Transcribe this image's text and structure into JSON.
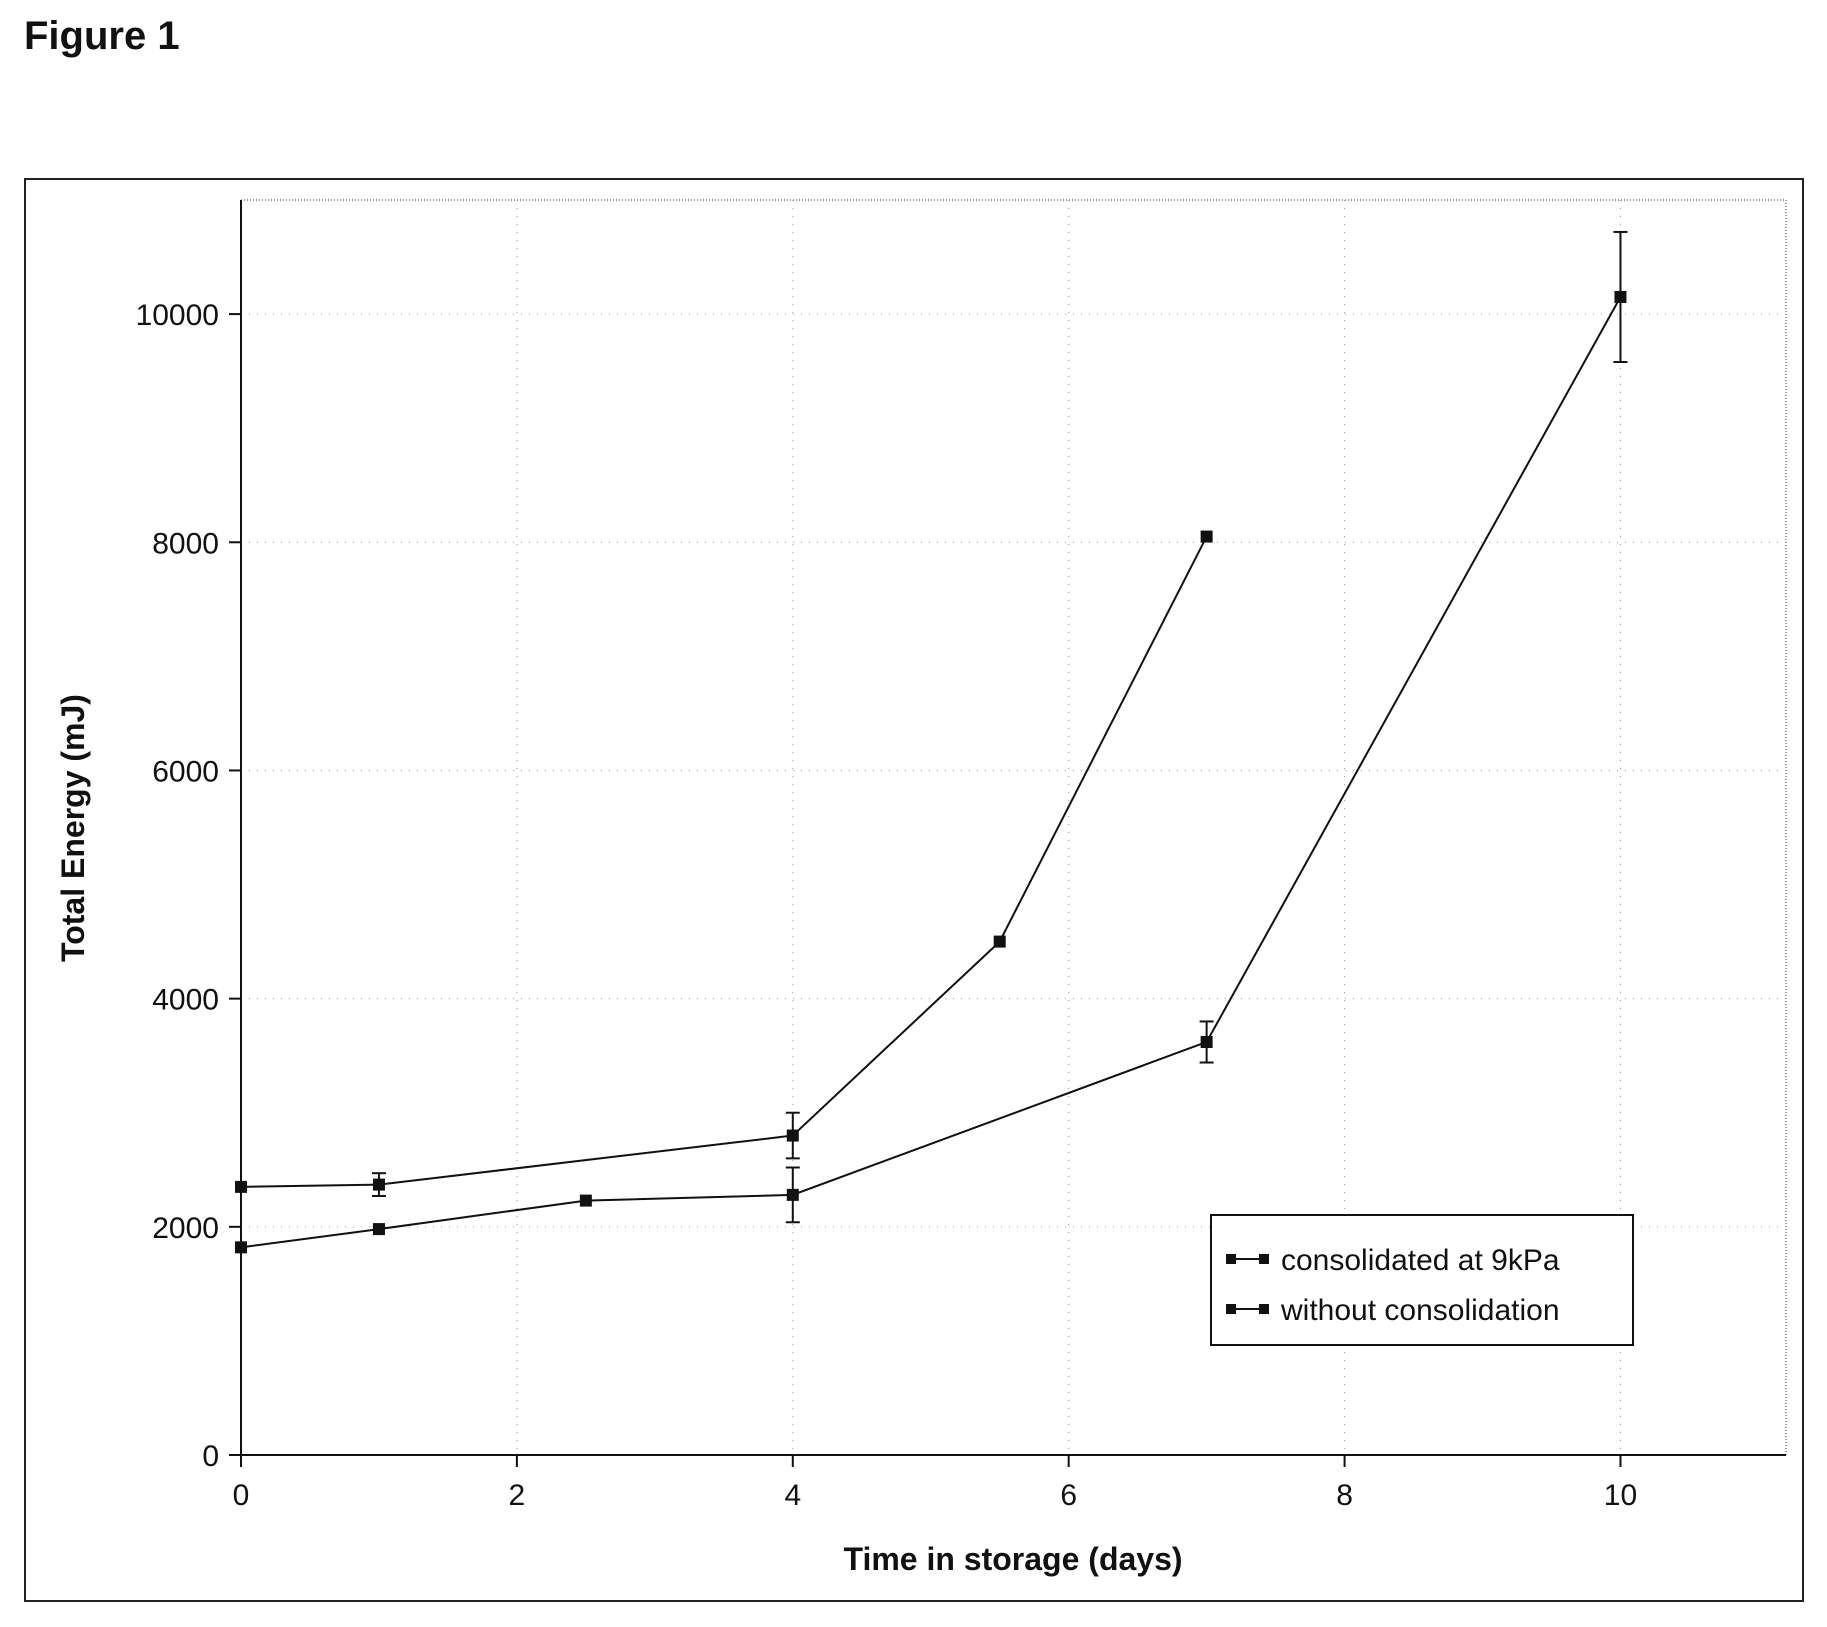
{
  "figure_label": "Figure 1",
  "chart_data": {
    "type": "line",
    "title": "",
    "xlabel": "Time in storage (days)",
    "ylabel": "Total Energy (mJ)",
    "xlim": [
      0,
      11.2
    ],
    "ylim": [
      0,
      11000
    ],
    "xticks": [
      0,
      2,
      4,
      6,
      8,
      10
    ],
    "yticks": [
      0,
      2000,
      4000,
      6000,
      8000,
      10000
    ],
    "grid": true,
    "legend": "lower-right",
    "series": [
      {
        "name": "consolidated at 9kPa",
        "color": "#111111",
        "marker": "square",
        "x": [
          0,
          1,
          4,
          5.5,
          7
        ],
        "y": [
          2350,
          2370,
          2800,
          4500,
          8050
        ],
        "err": [
          0,
          100,
          200,
          0,
          0
        ]
      },
      {
        "name": "without consolidation",
        "color": "#111111",
        "marker": "square",
        "x": [
          0,
          1,
          2.5,
          4,
          7,
          10
        ],
        "y": [
          1820,
          1980,
          2230,
          2280,
          3620,
          10150
        ],
        "err": [
          0,
          0,
          0,
          240,
          180,
          570
        ]
      }
    ]
  }
}
